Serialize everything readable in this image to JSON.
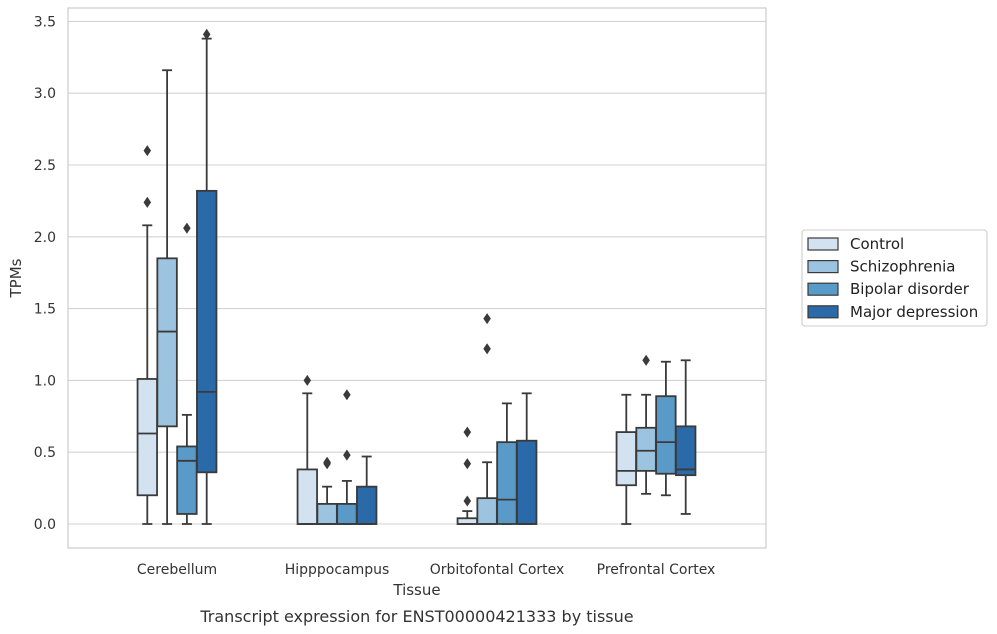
{
  "chart_data": {
    "type": "box",
    "xlabel": "Tissue",
    "ylabel": "TPMs",
    "caption": "Transcript expression for ENST00000421333 by tissue",
    "ylim": [
      -0.17,
      3.6
    ],
    "yticks": [
      0.0,
      0.5,
      1.0,
      1.5,
      2.0,
      2.5,
      3.0,
      3.5
    ],
    "ytick_labels": [
      "0.0",
      "0.5",
      "1.0",
      "1.5",
      "2.0",
      "2.5",
      "3.0",
      "3.5"
    ],
    "grid": "horizontal",
    "legend_position": "right",
    "categories": [
      "Cerebellum",
      "Hipppocampus",
      "Orbitofontal Cortex",
      "Prefrontal Cortex"
    ],
    "series": [
      {
        "name": "Control",
        "color": "#d2e2f1",
        "boxes": [
          {
            "whisker_low": 0.0,
            "q1": 0.2,
            "median": 0.63,
            "q3": 1.01,
            "whisker_high": 2.08,
            "outliers": [
              2.24,
              2.6
            ]
          },
          {
            "whisker_low": 0.0,
            "q1": 0.0,
            "median": 0.0,
            "q3": 0.38,
            "whisker_high": 0.91,
            "outliers": [
              1.0
            ]
          },
          {
            "whisker_low": 0.0,
            "q1": 0.0,
            "median": 0.0,
            "q3": 0.04,
            "whisker_high": 0.09,
            "outliers": [
              0.16,
              0.42,
              0.64
            ]
          },
          {
            "whisker_low": 0.0,
            "q1": 0.27,
            "median": 0.37,
            "q3": 0.64,
            "whisker_high": 0.9,
            "outliers": []
          }
        ]
      },
      {
        "name": "Schizophrenia",
        "color": "#9cc4e0",
        "boxes": [
          {
            "whisker_low": 0.0,
            "q1": 0.68,
            "median": 1.34,
            "q3": 1.85,
            "whisker_high": 3.16,
            "outliers": []
          },
          {
            "whisker_low": 0.0,
            "q1": 0.0,
            "median": 0.0,
            "q3": 0.14,
            "whisker_high": 0.26,
            "outliers": [
              0.42,
              0.43
            ]
          },
          {
            "whisker_low": 0.0,
            "q1": 0.0,
            "median": 0.0,
            "q3": 0.18,
            "whisker_high": 0.43,
            "outliers": [
              1.22,
              1.43
            ]
          },
          {
            "whisker_low": 0.21,
            "q1": 0.37,
            "median": 0.51,
            "q3": 0.67,
            "whisker_high": 0.9,
            "outliers": [
              1.14
            ]
          }
        ]
      },
      {
        "name": "Bipolar disorder",
        "color": "#5a9ac8",
        "boxes": [
          {
            "whisker_low": 0.0,
            "q1": 0.07,
            "median": 0.44,
            "q3": 0.54,
            "whisker_high": 0.76,
            "outliers": [
              2.06
            ]
          },
          {
            "whisker_low": 0.0,
            "q1": 0.0,
            "median": 0.0,
            "q3": 0.14,
            "whisker_high": 0.3,
            "outliers": [
              0.48,
              0.9
            ]
          },
          {
            "whisker_low": 0.0,
            "q1": 0.0,
            "median": 0.17,
            "q3": 0.57,
            "whisker_high": 0.84,
            "outliers": []
          },
          {
            "whisker_low": 0.2,
            "q1": 0.35,
            "median": 0.57,
            "q3": 0.89,
            "whisker_high": 1.13,
            "outliers": []
          }
        ]
      },
      {
        "name": "Major depression",
        "color": "#2b6aa8",
        "boxes": [
          {
            "whisker_low": 0.0,
            "q1": 0.36,
            "median": 0.92,
            "q3": 2.32,
            "whisker_high": 3.38,
            "outliers": [
              3.41
            ]
          },
          {
            "whisker_low": 0.0,
            "q1": 0.0,
            "median": 0.0,
            "q3": 0.26,
            "whisker_high": 0.47,
            "outliers": []
          },
          {
            "whisker_low": 0.0,
            "q1": 0.0,
            "median": 0.0,
            "q3": 0.58,
            "whisker_high": 0.91,
            "outliers": []
          },
          {
            "whisker_low": 0.07,
            "q1": 0.34,
            "median": 0.38,
            "q3": 0.68,
            "whisker_high": 1.14,
            "outliers": []
          }
        ]
      }
    ]
  }
}
